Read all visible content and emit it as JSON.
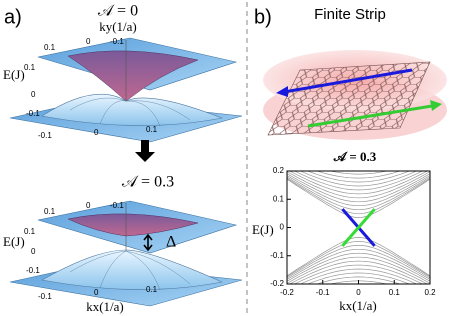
{
  "panel_a": {
    "label": "a)",
    "top": {
      "title": "𝒜 = 0",
      "ky_label": "ky(1/a)",
      "energy_label": "E(J)",
      "ky_ticks": [
        "0.1",
        "0",
        "-0.1"
      ],
      "energy_ticks": [
        "0.1",
        "0",
        "-0.1"
      ],
      "kx_ticks": [
        "-0.1",
        "0",
        "0.1"
      ]
    },
    "bottom": {
      "title": "𝒜 = 0.3",
      "energy_label": "E(J)",
      "gap_label": "Δ",
      "kx_label": "kx(1/a)",
      "ky_ticks": [
        "0.1",
        "0",
        "-0.1"
      ],
      "energy_ticks": [
        "0.1",
        "0",
        "-0.1"
      ],
      "kx_ticks": [
        "-0.1",
        "0",
        "0.1"
      ]
    }
  },
  "panel_b": {
    "label": "b)",
    "title": "Finite Strip",
    "plot": {
      "type": "line",
      "title": "𝒜 = 0.3",
      "xlabel": "kx(1/a)",
      "ylabel": "E(J)",
      "xlim": [
        -0.2,
        0.2
      ],
      "ylim": [
        -0.2,
        0.2
      ],
      "xticks": [
        -0.2,
        -0.1,
        0,
        0.1,
        0.2
      ],
      "yticks": [
        -0.2,
        -0.1,
        0,
        0.1,
        0.2
      ],
      "x": [
        -0.045,
        0.045
      ],
      "series": [
        {
          "color": "#1a1adc",
          "values": [
            0.065,
            -0.065
          ]
        },
        {
          "color": "#33dd33",
          "values": [
            -0.065,
            0.065
          ]
        }
      ]
    }
  }
}
